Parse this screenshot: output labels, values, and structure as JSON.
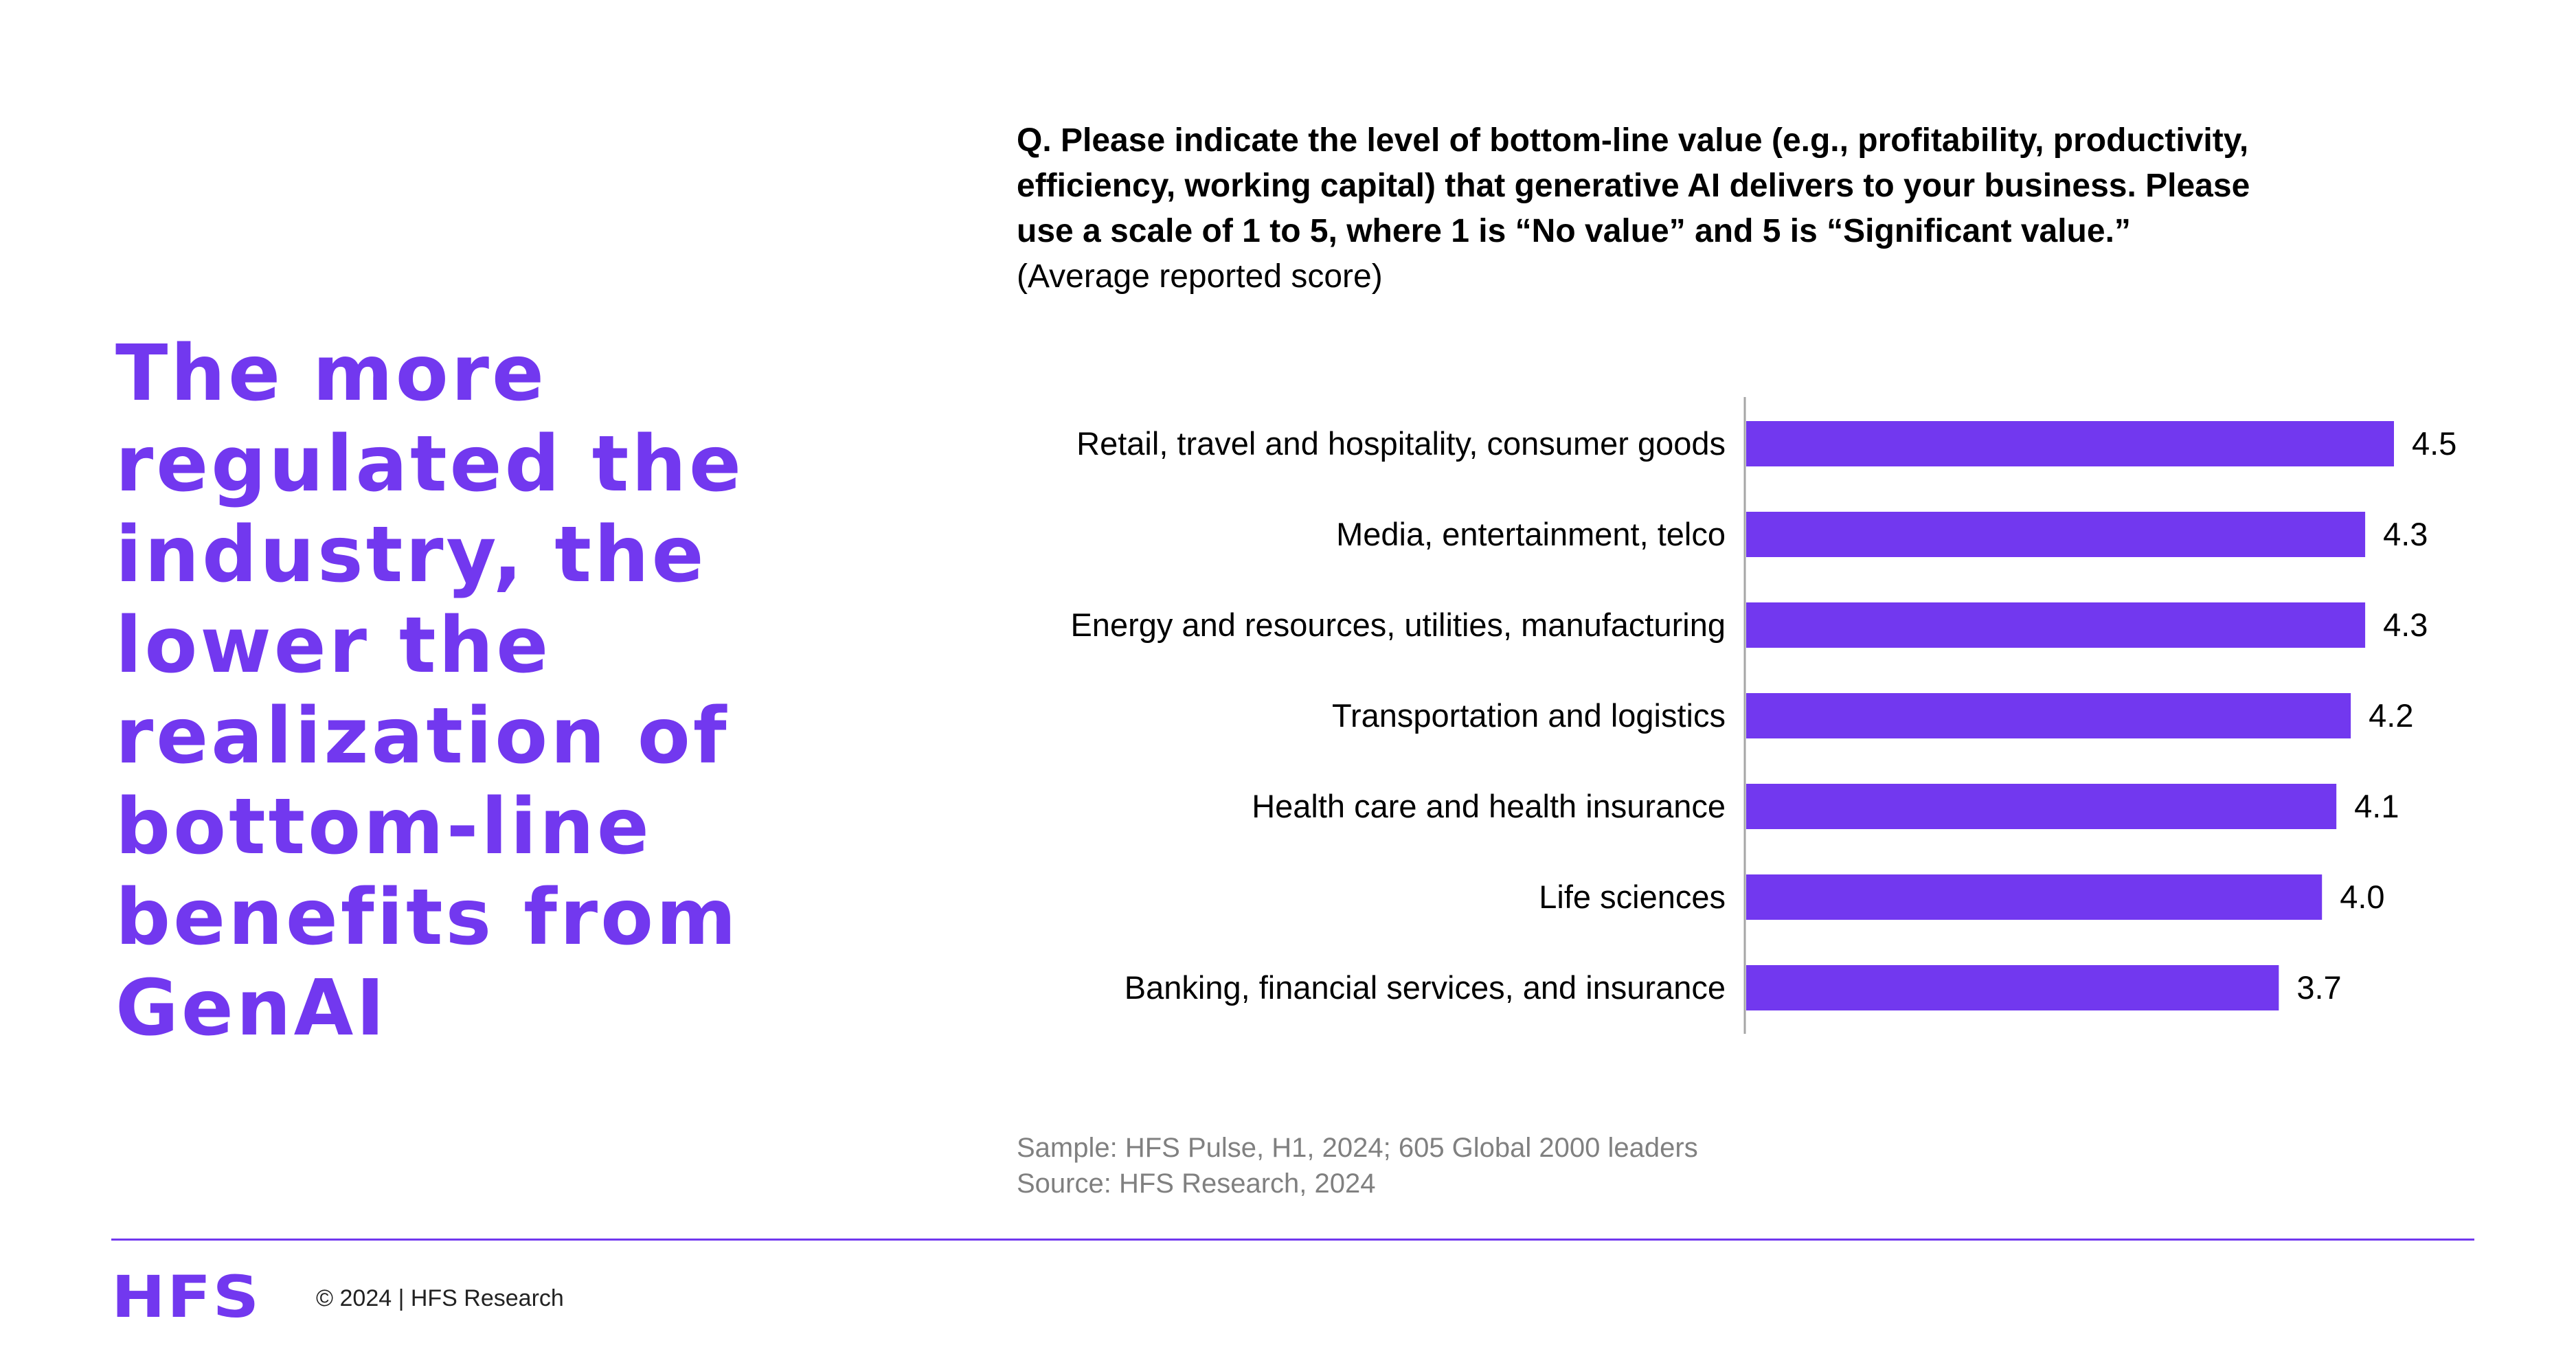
{
  "headline": {
    "lines": [
      "The more",
      "regulated the",
      "industry, the",
      "lower the",
      "realization of",
      "bottom-line",
      "benefits from",
      "GenAI"
    ]
  },
  "question": {
    "lines": [
      "Q. Please indicate the level of bottom-line value (e.g., profitability, productivity,",
      "efficiency, working capital) that generative AI delivers to your business. Please",
      "use a scale of 1 to 5, where 1 is “No value” and 5 is “Significant value.”"
    ],
    "subtitle": "(Average reported score)"
  },
  "chart_data": {
    "type": "bar",
    "orientation": "horizontal",
    "categories": [
      "Retail, travel and hospitality, consumer goods",
      "Media, entertainment, telco",
      "Energy and resources, utilities, manufacturing",
      "Transportation and logistics",
      "Health care and health insurance",
      "Life sciences",
      "Banking, financial services, and insurance"
    ],
    "values": [
      4.5,
      4.3,
      4.3,
      4.2,
      4.1,
      4.0,
      3.7
    ],
    "value_labels": [
      "4.5",
      "4.3",
      "4.3",
      "4.2",
      "4.1",
      "4.0",
      "3.7"
    ],
    "xlim": [
      0,
      4.5
    ],
    "grid": false,
    "bar_color": "#7238ef"
  },
  "notes": {
    "sample": "Sample: HFS Pulse, H1, 2024; 605 Global 2000 leaders",
    "source": "Source: HFS Research, 2024"
  },
  "footer": {
    "logo": "HFS",
    "copyright": "© 2024 | HFS Research"
  },
  "colors": {
    "accent": "#7238ef",
    "muted": "#808080"
  }
}
